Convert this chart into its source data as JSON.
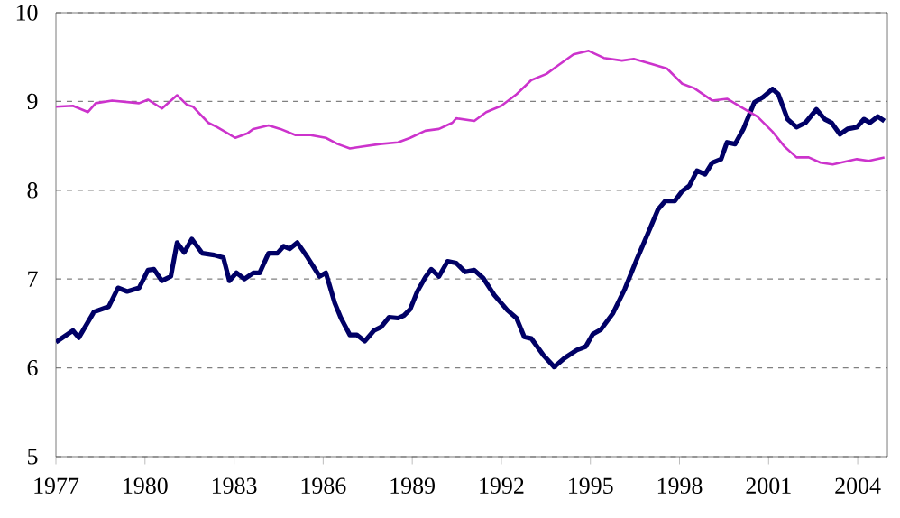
{
  "chart_data": {
    "type": "line",
    "xlim": [
      1977,
      2005
    ],
    "xticks": [
      1977,
      1980,
      1983,
      1986,
      1989,
      1992,
      1995,
      1998,
      2001,
      2004
    ],
    "ylim": [
      5,
      10
    ],
    "yticks": [
      5,
      6,
      7,
      8,
      9,
      10
    ],
    "grid": "y",
    "marker": "none",
    "line_style": "solid",
    "series": [
      {
        "color": "#000066",
        "x": [
          1977,
          1977.57,
          1977.77,
          1978.28,
          1978.78,
          1979.09,
          1979.4,
          1979.8,
          1980.1,
          1980.3,
          1980.57,
          1980.87,
          1981.08,
          1981.32,
          1981.58,
          1981.93,
          1982.33,
          1982.64,
          1982.84,
          1983.08,
          1983.35,
          1983.65,
          1983.86,
          1984.16,
          1984.46,
          1984.67,
          1984.87,
          1985.13,
          1985.48,
          1985.88,
          1986.09,
          1986.39,
          1986.6,
          1986.9,
          1987.14,
          1987.4,
          1987.71,
          1987.95,
          1988.22,
          1988.52,
          1988.72,
          1988.93,
          1989.17,
          1989.44,
          1989.64,
          1989.9,
          1990.19,
          1990.48,
          1990.78,
          1991.09,
          1991.39,
          1991.76,
          1992.2,
          1992.51,
          1992.77,
          1993.01,
          1993.42,
          1993.78,
          1994.13,
          1994.54,
          1994.84,
          1995.08,
          1995.35,
          1995.75,
          1996.16,
          1996.56,
          1996.97,
          1997.27,
          1997.52,
          1997.84,
          1998.09,
          1998.33,
          1998.59,
          1998.86,
          1999.1,
          1999.4,
          1999.6,
          1999.87,
          2000.15,
          2000.52,
          2000.82,
          2001.13,
          2001.33,
          2001.64,
          2001.94,
          2002.24,
          2002.61,
          2002.89,
          2003.12,
          2003.4,
          2003.66,
          2003.97,
          2004.21,
          2004.41,
          2004.68,
          2004.9
        ],
        "values": [
          6.29,
          6.42,
          6.34,
          6.63,
          6.69,
          6.9,
          6.86,
          6.9,
          7.1,
          7.11,
          6.98,
          7.03,
          7.41,
          7.3,
          7.45,
          7.29,
          7.27,
          7.24,
          6.98,
          7.07,
          7.0,
          7.07,
          7.07,
          7.29,
          7.29,
          7.37,
          7.34,
          7.41,
          7.24,
          7.03,
          7.07,
          6.73,
          6.56,
          6.37,
          6.37,
          6.3,
          6.42,
          6.46,
          6.57,
          6.56,
          6.59,
          6.66,
          6.86,
          7.02,
          7.11,
          7.03,
          7.2,
          7.18,
          7.08,
          7.1,
          7.01,
          6.82,
          6.65,
          6.56,
          6.35,
          6.33,
          6.14,
          6.01,
          6.11,
          6.2,
          6.24,
          6.38,
          6.43,
          6.61,
          6.89,
          7.22,
          7.54,
          7.78,
          7.88,
          7.88,
          7.99,
          8.05,
          8.22,
          8.18,
          8.31,
          8.35,
          8.54,
          8.52,
          8.69,
          8.99,
          9.05,
          9.14,
          9.08,
          8.8,
          8.71,
          8.76,
          8.91,
          8.8,
          8.76,
          8.63,
          8.69,
          8.71,
          8.8,
          8.76,
          8.83,
          8.78
        ]
      },
      {
        "color": "#cc33cc",
        "x": [
          1977,
          1977.57,
          1978.08,
          1978.34,
          1978.89,
          1979.8,
          1980.1,
          1980.57,
          1981.08,
          1981.42,
          1981.62,
          1982.13,
          1982.43,
          1983.04,
          1983.45,
          1983.65,
          1984.16,
          1984.56,
          1985.07,
          1985.58,
          1986.09,
          1986.49,
          1986.9,
          1987.3,
          1987.91,
          1988.52,
          1988.93,
          1989.44,
          1989.9,
          1990.35,
          1990.48,
          1991.09,
          1991.49,
          1992,
          1992.51,
          1993.01,
          1993.52,
          1993.93,
          1994.43,
          1994.94,
          1995.45,
          1996.06,
          1996.46,
          1997.07,
          1997.58,
          1998.09,
          1998.49,
          1999.1,
          1999.6,
          2000.11,
          2000.62,
          2001.13,
          2001.54,
          2001.94,
          2002.35,
          2002.75,
          2003.16,
          2003.56,
          2003.97,
          2004.37,
          2004.9
        ],
        "values": [
          8.94,
          8.95,
          8.88,
          8.98,
          9.01,
          8.98,
          9.02,
          8.92,
          9.07,
          8.96,
          8.94,
          8.76,
          8.71,
          8.59,
          8.64,
          8.69,
          8.73,
          8.69,
          8.62,
          8.62,
          8.59,
          8.52,
          8.47,
          8.49,
          8.52,
          8.54,
          8.59,
          8.67,
          8.69,
          8.76,
          8.81,
          8.78,
          8.88,
          8.95,
          9.08,
          9.24,
          9.31,
          9.41,
          9.53,
          9.57,
          9.49,
          9.46,
          9.48,
          9.42,
          9.37,
          9.2,
          9.15,
          9.01,
          9.03,
          8.93,
          8.83,
          8.66,
          8.49,
          8.37,
          8.37,
          8.31,
          8.29,
          8.32,
          8.35,
          8.33,
          8.37
        ]
      }
    ]
  }
}
